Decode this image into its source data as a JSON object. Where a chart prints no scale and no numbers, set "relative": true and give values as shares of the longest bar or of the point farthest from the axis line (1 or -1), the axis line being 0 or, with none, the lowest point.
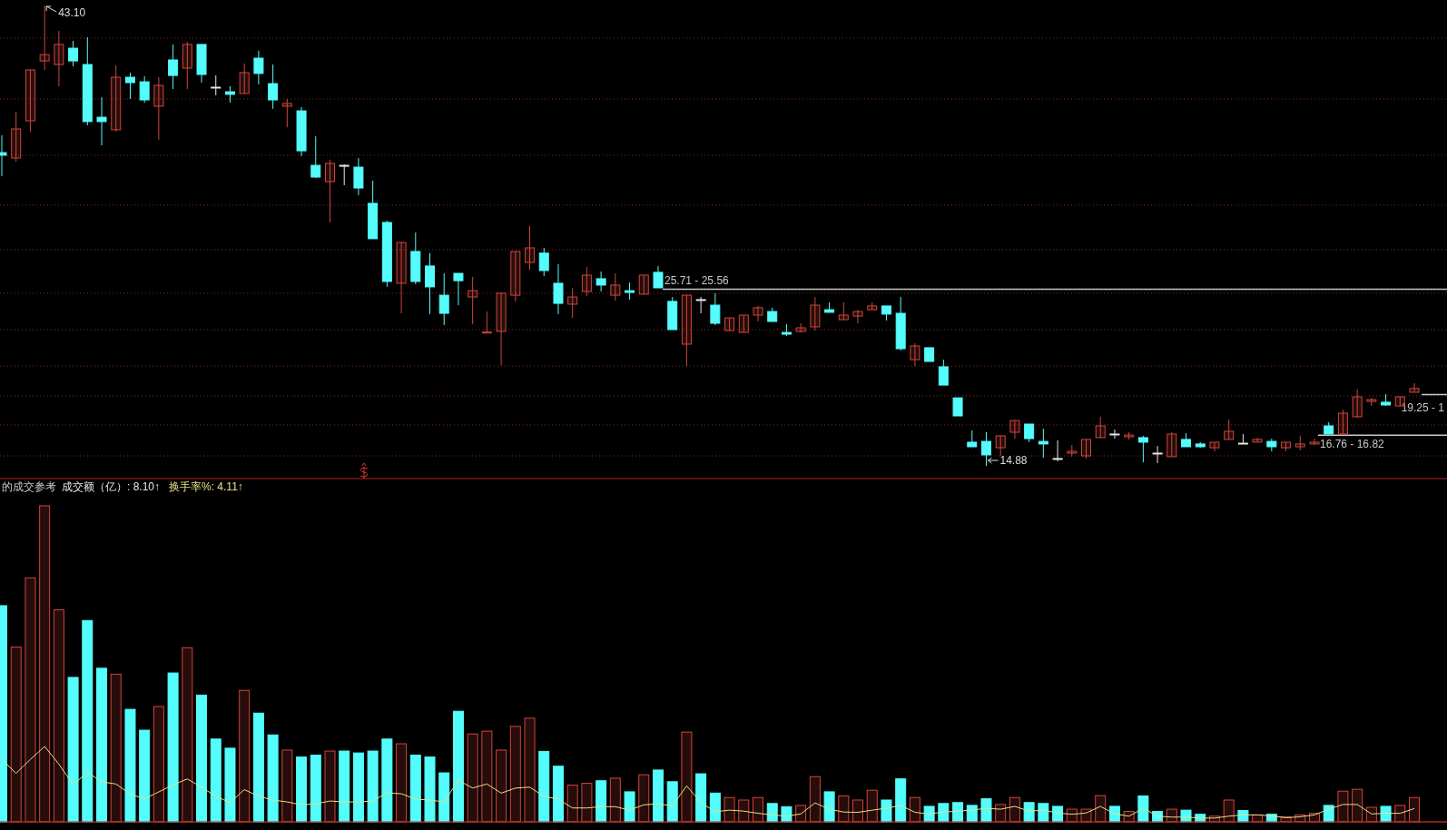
{
  "chart_data": [
    {
      "type": "candlestick",
      "categories": [
        null,
        null,
        null,
        null,
        null,
        null,
        null,
        null,
        null,
        null,
        null,
        null,
        null,
        null,
        null,
        null,
        null,
        null,
        null,
        null,
        null,
        null,
        null,
        null,
        null,
        null,
        null,
        null,
        null,
        null,
        null,
        null,
        null,
        null,
        null,
        null,
        null,
        null,
        null,
        null,
        null,
        null,
        null,
        null,
        null,
        null,
        null,
        null,
        null,
        null,
        null,
        null,
        null,
        null,
        null,
        null,
        null,
        null,
        null,
        null,
        null,
        null,
        null,
        null,
        null,
        null,
        null,
        null,
        null,
        null,
        null,
        null,
        null,
        null,
        null,
        null,
        null,
        null,
        null,
        null,
        null,
        null,
        null,
        null,
        null,
        null,
        null,
        null,
        null,
        null,
        null,
        null,
        null,
        null,
        null,
        null,
        null,
        null,
        null,
        null
      ],
      "ohlc": [
        [
          34.08,
          35.14,
          32.63,
          33.92
        ],
        [
          33.75,
          36.59,
          33.53,
          35.53
        ],
        [
          36.03,
          39.15,
          35.36,
          39.15
        ],
        [
          39.7,
          43.1,
          39.15,
          40.09
        ],
        [
          39.48,
          41.54,
          38.15,
          40.71
        ],
        [
          40.48,
          40.93,
          39.37,
          39.7
        ],
        [
          39.48,
          41.15,
          35.75,
          35.98
        ],
        [
          36.25,
          37.48,
          34.53,
          35.98
        ],
        [
          35.48,
          39.43,
          35.36,
          38.7
        ],
        [
          38.7,
          38.98,
          37.37,
          38.37
        ],
        [
          38.42,
          38.76,
          37.14,
          37.31
        ],
        [
          36.92,
          38.7,
          34.86,
          38.2
        ],
        [
          39.76,
          40.71,
          37.98,
          38.81
        ],
        [
          39.26,
          40.87,
          37.98,
          40.71
        ],
        [
          40.71,
          40.71,
          38.37,
          38.87
        ],
        [
          38.09,
          38.81,
          37.59,
          38.09
        ],
        [
          37.81,
          38.15,
          37.14,
          37.65
        ],
        [
          37.7,
          39.54,
          37.7,
          38.98
        ],
        [
          39.87,
          40.32,
          38.26,
          38.93
        ],
        [
          38.31,
          39.48,
          36.76,
          37.31
        ],
        [
          36.92,
          37.37,
          35.64,
          37.09
        ],
        [
          36.64,
          36.87,
          33.86,
          34.19
        ],
        [
          33.3,
          35.08,
          32.52,
          32.58
        ],
        [
          32.3,
          33.64,
          29.8,
          33.42
        ],
        [
          33.3,
          33.36,
          32.08,
          33.3
        ],
        [
          33.19,
          33.75,
          31.47,
          31.91
        ],
        [
          30.97,
          32.36,
          28.8,
          28.8
        ],
        [
          29.8,
          29.91,
          25.85,
          26.18
        ],
        [
          26.07,
          28.57,
          24.23,
          28.57
        ],
        [
          28.02,
          29.18,
          26.01,
          26.18
        ],
        [
          27.13,
          27.92,
          24.18,
          25.85
        ],
        [
          25.34,
          26.68,
          23.51,
          24.23
        ],
        [
          26.68,
          26.68,
          24.73,
          26.23
        ],
        [
          25.23,
          26.46,
          23.56,
          25.62
        ],
        [
          23.06,
          24.34,
          23.06,
          23.08
        ],
        [
          23.12,
          25.46,
          21.06,
          25.46
        ],
        [
          25.34,
          28.02,
          24.96,
          28.02
        ],
        [
          27.35,
          29.58,
          26.9,
          28.24
        ],
        [
          27.92,
          28.24,
          26.51,
          26.85
        ],
        [
          26.07,
          27.24,
          24.18,
          24.84
        ],
        [
          24.79,
          25.79,
          23.95,
          25.23
        ],
        [
          25.57,
          27.07,
          25.29,
          26.57
        ],
        [
          26.35,
          26.79,
          25.57,
          25.96
        ],
        [
          25.34,
          26.68,
          25.01,
          25.96
        ],
        [
          25.62,
          26.12,
          25.07,
          25.51
        ],
        [
          25.4,
          26.57,
          25.4,
          26.57
        ],
        [
          26.74,
          27.13,
          25.79,
          25.79
        ],
        [
          24.96,
          25.23,
          23.23,
          23.23
        ],
        [
          22.34,
          25.34,
          21.0,
          25.34
        ],
        [
          25.07,
          25.23,
          24.23,
          25.07
        ],
        [
          24.73,
          25.46,
          23.51,
          23.62
        ],
        [
          23.17,
          23.95,
          23.17,
          23.95
        ],
        [
          23.06,
          24.12,
          23.06,
          24.12
        ],
        [
          24.12,
          24.68,
          23.73,
          24.57
        ],
        [
          24.34,
          24.57,
          23.73,
          23.73
        ],
        [
          23.06,
          23.56,
          22.84,
          22.95
        ],
        [
          23.12,
          23.62,
          23.06,
          23.34
        ],
        [
          23.4,
          25.23,
          23.17,
          24.73
        ],
        [
          24.45,
          24.9,
          24.29,
          24.29
        ],
        [
          23.84,
          24.9,
          23.84,
          24.12
        ],
        [
          24.06,
          24.45,
          23.62,
          24.34
        ],
        [
          24.45,
          24.9,
          24.45,
          24.68
        ],
        [
          24.68,
          24.68,
          23.79,
          24.18
        ],
        [
          24.23,
          25.23,
          21.95,
          22.06
        ],
        [
          21.39,
          22.39,
          21.0,
          22.23
        ],
        [
          22.12,
          22.12,
          21.28,
          21.28
        ],
        [
          20.95,
          21.39,
          19.83,
          19.83
        ],
        [
          19.05,
          19.05,
          17.94,
          17.94
        ],
        [
          16.33,
          17.05,
          16.05,
          16.05
        ],
        [
          16.38,
          16.94,
          14.88,
          15.55
        ],
        [
          15.99,
          16.72,
          15.49,
          16.72
        ],
        [
          16.94,
          17.66,
          16.55,
          17.66
        ],
        [
          17.44,
          17.44,
          16.33,
          16.55
        ],
        [
          16.38,
          17.16,
          15.38,
          16.22
        ],
        [
          15.33,
          16.44,
          15.16,
          15.33
        ],
        [
          15.66,
          16.16,
          15.44,
          15.77
        ],
        [
          15.49,
          16.5,
          15.33,
          16.5
        ],
        [
          16.61,
          17.89,
          16.61,
          17.33
        ],
        [
          16.83,
          17.11,
          16.55,
          16.83
        ],
        [
          16.66,
          16.94,
          16.49,
          16.77
        ],
        [
          16.61,
          16.72,
          15.1,
          16.33
        ],
        [
          15.66,
          16.1,
          15.05,
          15.66
        ],
        [
          15.44,
          16.94,
          15.44,
          16.83
        ],
        [
          16.5,
          16.88,
          16.05,
          16.05
        ],
        [
          16.22,
          16.33,
          15.99,
          16.05
        ],
        [
          15.99,
          16.33,
          15.77,
          16.33
        ],
        [
          16.5,
          17.72,
          16.5,
          17.0
        ],
        [
          16.27,
          16.83,
          16.22,
          16.27
        ],
        [
          16.33,
          16.61,
          16.33,
          16.5
        ],
        [
          16.38,
          16.55,
          15.77,
          16.05
        ],
        [
          15.99,
          16.33,
          15.77,
          16.33
        ],
        [
          16.05,
          16.72,
          15.83,
          16.22
        ],
        [
          16.22,
          16.55,
          16.16,
          16.33
        ],
        [
          17.33,
          17.55,
          16.83,
          16.83
        ],
        [
          16.83,
          18.33,
          16.83,
          18.11
        ],
        [
          17.89,
          19.56,
          17.83,
          19.11
        ],
        [
          18.83,
          19.05,
          18.55,
          18.94
        ],
        [
          18.78,
          19.28,
          18.55,
          18.61
        ],
        [
          18.55,
          19.11,
          18.55,
          19.11
        ],
        [
          19.39,
          19.95,
          19.39,
          19.62
        ]
      ],
      "colors": [
        "#54fcfc",
        "#d0463c",
        "#d0463c",
        "#d0463c",
        "#d0463c",
        "#54fcfc",
        "#54fcfc",
        "#54fcfc",
        "#d0463c",
        "#54fcfc",
        "#54fcfc",
        "#d0463c",
        "#54fcfc",
        "#d0463c",
        "#54fcfc",
        "#e6e6e6",
        "#54fcfc",
        "#d0463c",
        "#54fcfc",
        "#54fcfc",
        "#d0463c",
        "#54fcfc",
        "#54fcfc",
        "#d0463c",
        "#e6e6e6",
        "#54fcfc",
        "#54fcfc",
        "#54fcfc",
        "#d0463c",
        "#54fcfc",
        "#54fcfc",
        "#54fcfc",
        "#54fcfc",
        "#d0463c",
        "#d0463c",
        "#d0463c",
        "#d0463c",
        "#d0463c",
        "#54fcfc",
        "#54fcfc",
        "#d0463c",
        "#d0463c",
        "#54fcfc",
        "#d0463c",
        "#54fcfc",
        "#d0463c",
        "#54fcfc",
        "#54fcfc",
        "#d0463c",
        "#e6e6e6",
        "#54fcfc",
        "#d0463c",
        "#d0463c",
        "#d0463c",
        "#54fcfc",
        "#54fcfc",
        "#d0463c",
        "#d0463c",
        "#54fcfc",
        "#d0463c",
        "#d0463c",
        "#d0463c",
        "#54fcfc",
        "#54fcfc",
        "#d0463c",
        "#54fcfc",
        "#54fcfc",
        "#54fcfc",
        "#54fcfc",
        "#54fcfc",
        "#d0463c",
        "#d0463c",
        "#54fcfc",
        "#54fcfc",
        "#e6e6e6",
        "#d0463c",
        "#d0463c",
        "#d0463c",
        "#e6e6e6",
        "#d0463c",
        "#54fcfc",
        "#e6e6e6",
        "#d0463c",
        "#54fcfc",
        "#54fcfc",
        "#d0463c",
        "#d0463c",
        "#e6e6e6",
        "#d0463c",
        "#54fcfc",
        "#d0463c",
        "#d0463c",
        "#d0463c",
        "#54fcfc",
        "#d0463c",
        "#d0463c",
        "#d0463c",
        "#54fcfc",
        "#d0463c",
        "#d0463c"
      ],
      "grid": "y",
      "yticks": [
        {
          "value": 41.1,
          "label": null
        },
        {
          "value": 37.37,
          "label": null
        },
        {
          "value": 33.92,
          "label": null
        },
        {
          "value": 30.86,
          "label": null
        },
        {
          "value": 28.13,
          "label": null
        },
        {
          "value": 25.46,
          "label": null
        },
        {
          "value": 23.23,
          "label": null
        },
        {
          "value": 21.0,
          "label": null
        },
        {
          "value": 19.17,
          "label": null
        },
        {
          "value": 17.39,
          "label": null
        },
        {
          "value": 15.49,
          "label": null
        }
      ],
      "ref_lines": [
        {
          "axis": "y",
          "value": 25.71,
          "label": "25.71 - 25.56",
          "color": "#c8c8c8"
        },
        {
          "axis": "y",
          "value": 16.76,
          "label": "16.76 - 16.82",
          "color": "#c8c8c8"
        },
        {
          "axis": "y",
          "value": 19.25,
          "label": "19.25 - 1",
          "color": "#c8c8c8"
        }
      ],
      "annotations": [
        "43.10",
        "14.88"
      ]
    },
    {
      "type": "bar",
      "title": "的成交参考",
      "relative": true,
      "categories": [
        null,
        null,
        null,
        null,
        null,
        null,
        null,
        null,
        null,
        null,
        null,
        null,
        null,
        null,
        null,
        null,
        null,
        null,
        null,
        null,
        null,
        null,
        null,
        null,
        null,
        null,
        null,
        null,
        null,
        null,
        null,
        null,
        null,
        null,
        null,
        null,
        null,
        null,
        null,
        null,
        null,
        null,
        null,
        null,
        null,
        null,
        null,
        null,
        null,
        null,
        null,
        null,
        null,
        null,
        null,
        null,
        null,
        null,
        null,
        null,
        null,
        null,
        null,
        null,
        null,
        null,
        null,
        null,
        null,
        null,
        null,
        null,
        null,
        null,
        null,
        null,
        null,
        null,
        null,
        null,
        null,
        null,
        null,
        null,
        null,
        null,
        null,
        null,
        null,
        null,
        null,
        null,
        null,
        null,
        null,
        null,
        null,
        null,
        null,
        null
      ],
      "annotations": [
        ": 8.10↑"
      ],
      "series": [
        {
          "name": "成交额（亿）",
          "type": "bar",
          "colors": [
            "#54fcfc",
            "#d0463c",
            "#d0463c",
            "#d0463c",
            "#d0463c",
            "#54fcfc",
            "#54fcfc",
            "#54fcfc",
            "#d0463c",
            "#54fcfc",
            "#54fcfc",
            "#d0463c",
            "#54fcfc",
            "#d0463c",
            "#54fcfc",
            "#54fcfc",
            "#54fcfc",
            "#d0463c",
            "#54fcfc",
            "#54fcfc",
            "#d0463c",
            "#54fcfc",
            "#54fcfc",
            "#d0463c",
            "#54fcfc",
            "#54fcfc",
            "#54fcfc",
            "#54fcfc",
            "#d0463c",
            "#54fcfc",
            "#54fcfc",
            "#54fcfc",
            "#54fcfc",
            "#d0463c",
            "#d0463c",
            "#d0463c",
            "#d0463c",
            "#d0463c",
            "#54fcfc",
            "#54fcfc",
            "#d0463c",
            "#d0463c",
            "#54fcfc",
            "#d0463c",
            "#54fcfc",
            "#d0463c",
            "#54fcfc",
            "#54fcfc",
            "#d0463c",
            "#54fcfc",
            "#54fcfc",
            "#d0463c",
            "#d0463c",
            "#d0463c",
            "#54fcfc",
            "#54fcfc",
            "#d0463c",
            "#d0463c",
            "#54fcfc",
            "#d0463c",
            "#d0463c",
            "#d0463c",
            "#54fcfc",
            "#54fcfc",
            "#d0463c",
            "#54fcfc",
            "#54fcfc",
            "#54fcfc",
            "#54fcfc",
            "#54fcfc",
            "#d0463c",
            "#d0463c",
            "#54fcfc",
            "#54fcfc",
            "#54fcfc",
            "#d0463c",
            "#d0463c",
            "#d0463c",
            "#54fcfc",
            "#d0463c",
            "#54fcfc",
            "#54fcfc",
            "#d0463c",
            "#54fcfc",
            "#54fcfc",
            "#d0463c",
            "#d0463c",
            "#54fcfc",
            "#d0463c",
            "#54fcfc",
            "#d0463c",
            "#d0463c",
            "#d0463c",
            "#54fcfc",
            "#d0463c",
            "#d0463c",
            "#d0463c",
            "#54fcfc",
            "#d0463c",
            "#d0463c"
          ],
          "values": [
            0.684,
            0.553,
            0.772,
            1,
            0.671,
            0.457,
            0.637,
            0.486,
            0.467,
            0.356,
            0.29,
            0.365,
            0.471,
            0.551,
            0.401,
            0.262,
            0.233,
            0.416,
            0.344,
            0.275,
            0.227,
            0.205,
            0.211,
            0.224,
            0.224,
            0.218,
            0.224,
            0.262,
            0.247,
            0.211,
            0.205,
            0.155,
            0.35,
            0.278,
            0.287,
            0.227,
            0.302,
            0.328,
            0.223,
            0.176,
            0.116,
            0.122,
            0.13,
            0.138,
            0.095,
            0.149,
            0.164,
            0.127,
            0.284,
            0.152,
            0.091,
            0.077,
            0.069,
            0.077,
            0.058,
            0.048,
            0.052,
            0.143,
            0.095,
            0.082,
            0.069,
            0.1,
            0.069,
            0.136,
            0.077,
            0.049,
            0.058,
            0.061,
            0.052,
            0.073,
            0.055,
            0.077,
            0.061,
            0.058,
            0.049,
            0.04,
            0.04,
            0.083,
            0.049,
            0.033,
            0.082,
            0.033,
            0.04,
            0.037,
            0.024,
            0.018,
            0.069,
            0.036,
            0.022,
            0.024,
            0.016,
            0.022,
            0.027,
            0.052,
            0.097,
            0.103,
            0.046,
            0.049,
            0.052,
            0.077
          ]
        }
      ]
    },
    {
      "type": "line",
      "relative": true,
      "categories": [
        null,
        null,
        null,
        null,
        null,
        null,
        null,
        null,
        null,
        null,
        null,
        null,
        null,
        null,
        null,
        null,
        null,
        null,
        null,
        null,
        null,
        null,
        null,
        null,
        null,
        null,
        null,
        null,
        null,
        null,
        null,
        null,
        null,
        null,
        null,
        null,
        null,
        null,
        null,
        null,
        null,
        null,
        null,
        null,
        null,
        null,
        null,
        null,
        null,
        null,
        null,
        null,
        null,
        null,
        null,
        null,
        null,
        null,
        null,
        null,
        null,
        null,
        null,
        null,
        null,
        null,
        null,
        null,
        null,
        null,
        null,
        null,
        null,
        null,
        null,
        null,
        null,
        null,
        null,
        null,
        null,
        null,
        null,
        null,
        null,
        null,
        null,
        null,
        null,
        null,
        null,
        null,
        null,
        null,
        null,
        null,
        null,
        null,
        null,
        null
      ],
      "annotations": [
        ": 4.11↑"
      ],
      "series": [
        {
          "name": "换手率%",
          "color": "#e6e08a",
          "values": [
            0.828,
            0.644,
            0.828,
            1,
            0.766,
            0.49,
            0.657,
            0.531,
            0.502,
            0.368,
            0.305,
            0.397,
            0.49,
            0.569,
            0.46,
            0.339,
            0.255,
            0.427,
            0.339,
            0.289,
            0.264,
            0.226,
            0.238,
            0.276,
            0.264,
            0.264,
            0.276,
            0.385,
            0.372,
            0.301,
            0.289,
            0.264,
            0.552,
            0.448,
            0.502,
            0.381,
            0.448,
            0.46,
            0.339,
            0.301,
            0.184,
            0.184,
            0.201,
            0.201,
            0.155,
            0.226,
            0.238,
            0.213,
            0.477,
            0.255,
            0.134,
            0.155,
            0.142,
            0.113,
            0.092,
            0.075,
            0.105,
            0.251,
            0.167,
            0.13,
            0.126,
            0.155,
            0.18,
            0.218,
            0.126,
            0.105,
            0.13,
            0.142,
            0.155,
            0.18,
            0.167,
            0.205,
            0.142,
            0.155,
            0.117,
            0.1,
            0.117,
            0.205,
            0.105,
            0.075,
            0.18,
            0.075,
            0.063,
            0.063,
            0.05,
            0.05,
            0.075,
            0.092,
            0.092,
            0.079,
            0.054,
            0.067,
            0.092,
            0.167,
            0.23,
            0.23,
            0.105,
            0.113,
            0.113,
            0.176
          ]
        }
      ]
    }
  ]
}
